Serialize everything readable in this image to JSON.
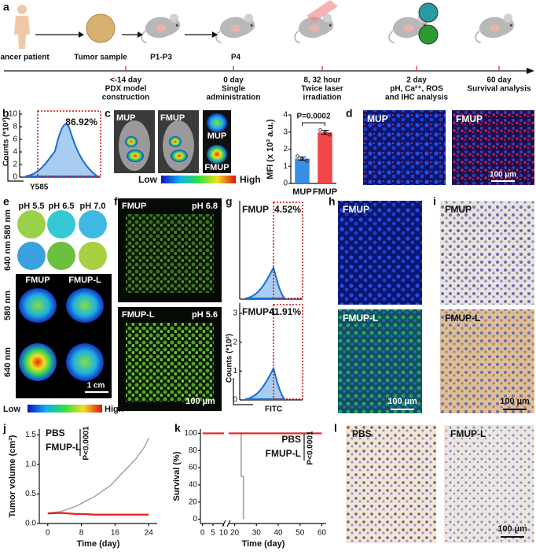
{
  "figure": {
    "panel_labels": [
      "a",
      "b",
      "c",
      "d",
      "e",
      "f",
      "g",
      "h",
      "i",
      "j",
      "k",
      "l"
    ],
    "a": {
      "stages": [
        "Cancer patient",
        "Tumor sample",
        "P1-P3",
        "P4"
      ],
      "timeline": [
        [
          "<-14 day",
          "PDX model",
          "construction"
        ],
        [
          "0 day",
          "Single",
          "administration"
        ],
        [
          "8, 32 hour",
          "Twice laser",
          "irradiation"
        ],
        [
          "2 day",
          "pH, Ca²⁺, ROS",
          "and IHC analysis"
        ],
        [
          "60 day",
          "Survival analysis"
        ]
      ]
    },
    "b": {
      "y_label": "Counts (*10²)",
      "y_ticks": [
        0,
        2,
        4,
        6,
        8,
        10
      ],
      "gate": "86.92%",
      "x_label": "Y585"
    },
    "c": {
      "images": [
        "MUP",
        "FMUP"
      ],
      "insets": [
        "MUP",
        "FMUP"
      ],
      "colorbar": [
        "Low",
        "High"
      ]
    },
    "d": {
      "images": [
        "MUP",
        "FMUP"
      ],
      "scale_bar": "100 µm"
    },
    "e": {
      "columns": [
        "pH 5.5",
        "pH 6.5",
        "pH 7.0"
      ],
      "rows": [
        "580 nm",
        "640 nm"
      ],
      "tumor_columns": [
        "FMUP",
        "FMUP-L"
      ],
      "tumor_rows": [
        "580 nm",
        "640 nm"
      ],
      "scale_bar": "1 cm",
      "colorbar": [
        "Low",
        "High"
      ]
    },
    "f": {
      "images": [
        {
          "label": "FMUP",
          "ph": "pH 6.8"
        },
        {
          "label": "FMUP-L",
          "ph": "pH 5.6"
        }
      ],
      "scale_bar": "100 µm"
    },
    "g": {
      "plots": [
        {
          "label": "FMUP",
          "gate": "4.52%"
        },
        {
          "label": "FMUP-L",
          "gate": "41.91%"
        }
      ],
      "y_label": "Counts (*10²)",
      "y_ticks": [
        0,
        1,
        2,
        3
      ],
      "x_label": "FITC"
    },
    "h": {
      "images": [
        "FMUP",
        "FMUP-L"
      ],
      "scale_bar": "100 µm"
    },
    "i": {
      "images": [
        "FMUP",
        "FMUP-L"
      ],
      "scale_bar": "100 µm"
    },
    "l": {
      "images": [
        "PBS",
        "FMUP-L"
      ],
      "scale_bar": "100 µm"
    }
  },
  "chart_data": [
    {
      "type": "bar",
      "categories": [
        "MUP",
        "FMUP"
      ],
      "values": [
        1.45,
        2.98
      ],
      "errors": [
        0.1,
        0.12
      ],
      "colors": [
        "#3a8ee6",
        "#f04848"
      ],
      "ylabel": "MFI (x 10³ a.u.)",
      "ylim": [
        0,
        4
      ],
      "yticks": [
        0,
        1,
        2,
        3,
        4
      ],
      "annotation": "P=0.0002"
    },
    {
      "type": "line",
      "x": [
        0,
        3,
        5,
        7,
        9,
        11,
        13,
        15,
        17,
        19,
        21,
        23,
        24
      ],
      "xlim": [
        -2,
        26
      ],
      "xticks": [
        0,
        8,
        16,
        24
      ],
      "ylim": [
        0,
        1.6
      ],
      "yticks": [
        {
          "value": 0,
          "label": "0.0"
        },
        0.5,
        {
          "value": 1,
          "label": "1.0"
        },
        1.5
      ],
      "xlabel": "Time (day)",
      "ylabel": "Tumor volume (cm³)",
      "annotation": "P<0.0001",
      "series": [
        {
          "name": "PBS",
          "color": "#999999",
          "values": [
            0.18,
            0.2,
            0.25,
            0.3,
            0.38,
            0.45,
            0.55,
            0.65,
            0.8,
            0.95,
            1.1,
            1.3,
            1.45
          ]
        },
        {
          "name": "FMUP-L",
          "color": "#e82020",
          "values": [
            0.17,
            0.18,
            0.17,
            0.16,
            0.16,
            0.15,
            0.15,
            0.15,
            0.15,
            0.15,
            0.15,
            0.15,
            0.15
          ]
        }
      ]
    },
    {
      "type": "step",
      "xlim": [
        -1,
        62
      ],
      "axis_break": [
        11,
        18
      ],
      "xticks": [
        0,
        5,
        10,
        20,
        30,
        40,
        50,
        60
      ],
      "ylim": [
        -5,
        105
      ],
      "yticks": [
        0,
        20,
        40,
        60,
        80,
        100
      ],
      "xlabel": "Time (day)",
      "ylabel": "Survival (%)",
      "annotation": "P<0.0001",
      "series": [
        {
          "name": "PBS",
          "color": "#999999",
          "x": [
            0,
            23,
            23,
            24,
            24
          ],
          "values": [
            100,
            100,
            50,
            50,
            0
          ]
        },
        {
          "name": "FMUP-L",
          "color": "#e82020",
          "x": [
            0,
            60
          ],
          "values": [
            100,
            100
          ]
        }
      ]
    }
  ]
}
